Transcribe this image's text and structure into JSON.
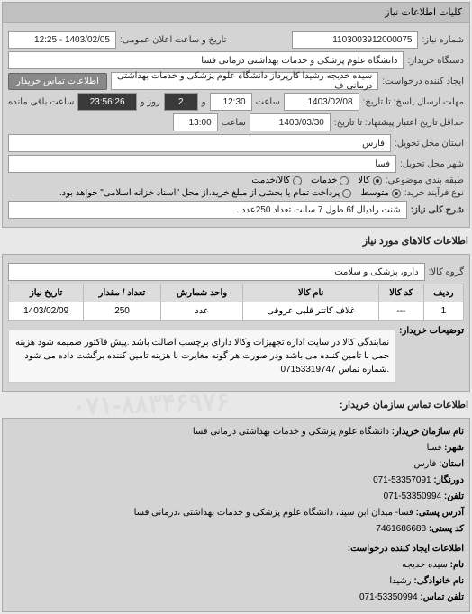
{
  "panel1": {
    "header": "کلیات اطلاعات نیاز",
    "rows": {
      "request_no_label": "شماره نیاز:",
      "request_no": "1103003912000075",
      "announce_label": "تاریخ و ساعت اعلان عمومی:",
      "announce_value": "1403/02/05 - 12:25",
      "buyer_label": "دستگاه خریدار:",
      "buyer_value": "دانشگاه علوم پزشکی و خدمات بهداشتی درمانی فسا",
      "creator_label": "ایجاد کننده درخواست:",
      "creator_value": "سیده خدیجه رشیدا کارپرداز دانشگاه علوم پزشکی و خدمات بهداشتی درمانی ف",
      "contact_btn": "اطلاعات تماس خریدار",
      "deadline_send_label": "مهلت ارسال پاسخ: تا تاریخ:",
      "deadline_send_date": "1403/02/08",
      "time_label": "ساعت",
      "deadline_send_time": "12:30",
      "days_and": "و",
      "days_value": "2",
      "days_label": "روز و",
      "remain_value": "23:56:26",
      "remain_label": "ساعت باقی مانده",
      "validity_label": "حداقل تاریخ اعتبار پیشنهاد: تا تاریخ:",
      "validity_date": "1403/03/30",
      "validity_time": "13:00",
      "province_label": "استان محل تحویل:",
      "province_value": "فارس",
      "city_label": "شهر محل تحویل:",
      "city_value": "فسا",
      "group_label": "طبقه بندی موضوعی:",
      "group_opts": {
        "kala": "کالا",
        "khadamat": "خدمات",
        "both": "کالا/خدمت"
      },
      "buy_type_label": "نوع فرآیند خرید:",
      "buy_opts": {
        "mid": "متوسط",
        "full": "پرداخت تمام یا بخشی از مبلغ خرید،از محل \"اسناد خزانه اسلامی\" خواهد بود."
      },
      "desc_label": "شرح کلی نیاز:",
      "desc_value": "شنت رادیال 6f طول 7 سانت تعداد 250عدد ."
    }
  },
  "panel2": {
    "title": "اطلاعات کالاهای مورد نیاز",
    "group_label": "گروه کالا:",
    "group_value": "دارو، پزشکی و سلامت",
    "table": {
      "headers": [
        "ردیف",
        "کد کالا",
        "نام کالا",
        "واحد شمارش",
        "تعداد / مقدار",
        "تاریخ نیاز"
      ],
      "rows": [
        [
          "1",
          "---",
          "غلاف کاتتر قلبی عروقی",
          "عدد",
          "250",
          "1403/02/09"
        ]
      ]
    },
    "note_label": "توضیحات خریدار:",
    "note_text": "نمایندگی کالا در سایت اداره تجهیزات وکالا دارای برچسب اصالت باشد .پیش فاکتور ضمیمه شود هزینه حمل با تامین کننده می باشد ودر صورت هر گونه مغایرت با هزینه تامین کننده برگشت داده می شود .شماره تماس 07153319747"
  },
  "panel3": {
    "title": "اطلاعات تماس سازمان خریدار:",
    "org_label": "نام سازمان خریدار:",
    "org_value": "دانشگاه علوم پزشکی و خدمات بهداشتی درمانی فسا",
    "city_label": "شهر:",
    "city_value": "فسا",
    "province_label": "استان:",
    "province_value": "فارس",
    "fax_label": "دورنگار:",
    "fax_value": "53357091-071",
    "phone_label": "تلفن:",
    "phone_value": "53350994-071",
    "address_label": "آدرس پستی:",
    "address_value": "فسا- میدان ابن سینا، دانشگاه علوم پزشکی و خدمات بهداشتی ،درمانی فسا",
    "post_label": "کد پستی:",
    "post_value": "7461686688",
    "req_creator_title": "اطلاعات ایجاد کننده درخواست:",
    "name_label": "نام:",
    "name_value": "سیده خدیجه",
    "lname_label": "نام خانوادگی:",
    "lname_value": "رشیدا",
    "c_phone_label": "تلفن تماس:",
    "c_phone_value": "53350994-071"
  },
  "watermark": "۰۷۱-۸۸۳۴۶۹۷۶"
}
